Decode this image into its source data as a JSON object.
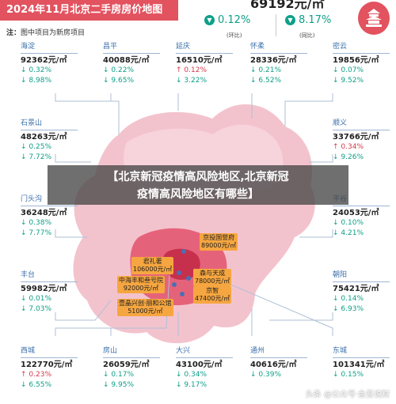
{
  "header": {
    "title": "2024年11月北京二手房房价地图",
    "note_label": "注：",
    "note_text": "图中项目为新房项目"
  },
  "summary": {
    "price": "69192元/㎡",
    "mom_change": "0.12%",
    "mom_label": "(环比)",
    "yoy_change": "8.17%",
    "yoy_label": "(同比)"
  },
  "districts": [
    {
      "name": "海淀",
      "price": "92362元/㎡",
      "mom": "0.32%",
      "mom_dir": "down",
      "yoy": "8.98%",
      "yoy_dir": "down"
    },
    {
      "name": "昌平",
      "price": "40088元/㎡",
      "mom": "0.22%",
      "mom_dir": "down",
      "yoy": "9.65%",
      "yoy_dir": "down"
    },
    {
      "name": "延庆",
      "price": "16510元/㎡",
      "mom": "0.12%",
      "mom_dir": "up",
      "yoy": "3.22%",
      "yoy_dir": "down"
    },
    {
      "name": "怀柔",
      "price": "28336元/㎡",
      "mom": "0.21%",
      "mom_dir": "down",
      "yoy": "6.52%",
      "yoy_dir": "down"
    },
    {
      "name": "密云",
      "price": "19856元/㎡",
      "mom": "0.07%",
      "mom_dir": "down",
      "yoy": "9.52%",
      "yoy_dir": "down"
    },
    {
      "name": "石景山",
      "price": "48263元/㎡",
      "mom": "0.25%",
      "mom_dir": "down",
      "yoy": "7.72%",
      "yoy_dir": "down"
    },
    {
      "name": "顺义",
      "price": "33766元/㎡",
      "mom": "0.34%",
      "mom_dir": "up",
      "yoy": "9.26%",
      "yoy_dir": "down"
    },
    {
      "name": "门头沟",
      "price": "36248元/㎡",
      "mom": "0.38%",
      "mom_dir": "down",
      "yoy": "7.77%",
      "yoy_dir": "down"
    },
    {
      "name": "平谷",
      "price": "24053元/㎡",
      "mom": "0.10%",
      "mom_dir": "down",
      "yoy": "4.21%",
      "yoy_dir": "down"
    },
    {
      "name": "丰台",
      "price": "59982元/㎡",
      "mom": "0.01%",
      "mom_dir": "down",
      "yoy": "7.03%",
      "yoy_dir": "down"
    },
    {
      "name": "朝阳",
      "price": "75421元/㎡",
      "mom": "0.14%",
      "mom_dir": "down",
      "yoy": "6.93%",
      "yoy_dir": "down"
    },
    {
      "name": "西城",
      "price": "122770元/㎡",
      "mom": "0.23%",
      "mom_dir": "up",
      "yoy": "6.55%",
      "yoy_dir": "down"
    },
    {
      "name": "房山",
      "price": "26059元/㎡",
      "mom": "0.17%",
      "mom_dir": "down",
      "yoy": "9.95%",
      "yoy_dir": "down"
    },
    {
      "name": "大兴",
      "price": "43100元/㎡",
      "mom": "0.34%",
      "mom_dir": "down",
      "yoy": "9.17%",
      "yoy_dir": "down"
    },
    {
      "name": "通州",
      "price": "40616元/㎡",
      "mom": "0.39%",
      "mom_dir": "down",
      "yoy": "",
      "yoy_dir": "down"
    },
    {
      "name": "东城",
      "price": "101341元/㎡",
      "mom": "0.15%",
      "mom_dir": "down",
      "yoy": "",
      "yoy_dir": "down"
    }
  ],
  "projects": [
    {
      "name": "京投国誉府",
      "price": "89000元/㎡"
    },
    {
      "name": "君礼著",
      "price": "106000元/㎡"
    },
    {
      "name": "中海丰和叁号院",
      "price": "92000元/㎡"
    },
    {
      "name": "森与天成",
      "price": "78000元/㎡"
    },
    {
      "name": "京智",
      "price": "47400元/㎡"
    },
    {
      "name": "壹晶兴创·丽和公馆",
      "price": "51000元/㎡"
    }
  ],
  "banner": {
    "line1": "【北京新冠疫情高风险地区,北京新冠",
    "line2": "疫情高风险地区有哪些】"
  },
  "watermark": "头条 @公众号·金吾说财",
  "colors": {
    "accent": "#e2525f",
    "down": "#0e9f88",
    "up": "#d23a4a",
    "callout": "#f6a640"
  }
}
